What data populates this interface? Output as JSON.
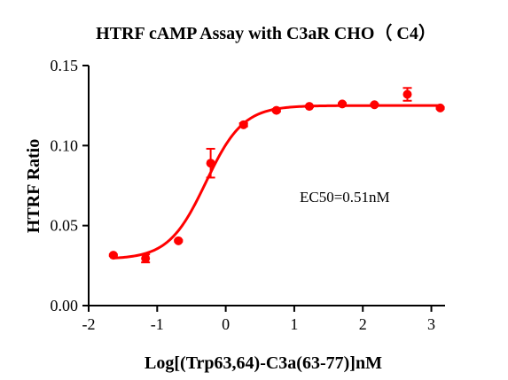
{
  "chart_data": {
    "type": "scatter",
    "title": "HTRF cAMP Assay with C3aR CHO（ C4）",
    "xlabel": "Log[(Trp63,64)-C3a(63-77)]nM",
    "ylabel": "HTRF Ratio",
    "xlim": [
      -2,
      3.2
    ],
    "ylim": [
      0,
      0.15
    ],
    "x_ticks": [
      -2,
      -1,
      0,
      1,
      2,
      3
    ],
    "x_tick_labels": [
      "-2",
      "-1",
      "0",
      "1",
      "2",
      "3"
    ],
    "y_ticks": [
      0,
      0.05,
      0.1,
      0.15
    ],
    "y_tick_labels": [
      "0.00",
      "0.05",
      "0.10",
      "0.15"
    ],
    "annotation": "EC50=0.51nM",
    "grid": false,
    "color": "#ff0000",
    "series": [
      {
        "points": [
          {
            "x": -1.64,
            "y": 0.0315,
            "err": 0.0005
          },
          {
            "x": -1.17,
            "y": 0.0295,
            "err": 0.0025
          },
          {
            "x": -0.69,
            "y": 0.0405,
            "err": 0.0005
          },
          {
            "x": -0.22,
            "y": 0.089,
            "err": 0.009
          },
          {
            "x": 0.26,
            "y": 0.113,
            "err": 0.001
          },
          {
            "x": 0.74,
            "y": 0.122,
            "err": 0.0008
          },
          {
            "x": 1.22,
            "y": 0.1245,
            "err": 0.0005
          },
          {
            "x": 1.7,
            "y": 0.126,
            "err": 0.0005
          },
          {
            "x": 2.17,
            "y": 0.1255,
            "err": 0.0005
          },
          {
            "x": 2.65,
            "y": 0.132,
            "err": 0.004
          },
          {
            "x": 3.13,
            "y": 0.1235,
            "err": 0.0005
          }
        ]
      }
    ],
    "fit": {
      "bottom": 0.029,
      "top": 0.125,
      "logEC50": -0.29,
      "hill": 1.6,
      "x_range": [
        -1.64,
        3.13
      ]
    }
  }
}
